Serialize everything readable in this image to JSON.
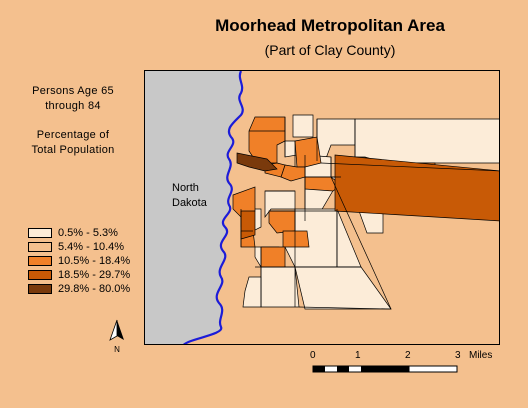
{
  "title": "Moorhead Metropolitan Area",
  "subtitle": "(Part of Clay County)",
  "legend": {
    "heading": "Persons Age 65\nthrough 84",
    "subheading": "Percentage of\nTotal Population",
    "classes": [
      {
        "label": "0.5% - 5.3%",
        "color": "#fcecd8"
      },
      {
        "label": "5.4% - 10.4%",
        "color": "#f4c08e"
      },
      {
        "label": "10.5% - 18.4%",
        "color": "#f08028"
      },
      {
        "label": "18.5% - 29.7%",
        "color": "#c85a06"
      },
      {
        "label": "29.8% - 80.0%",
        "color": "#7a3a0c"
      }
    ]
  },
  "map": {
    "state_label": "North\nDakota",
    "state_color": "#c8c8c8",
    "river_color": "#1c1cd8"
  },
  "scalebar": {
    "ticks": [
      "0",
      "1",
      "2",
      "3"
    ],
    "unit": "Miles"
  },
  "north_arrow": {
    "label": "N"
  }
}
